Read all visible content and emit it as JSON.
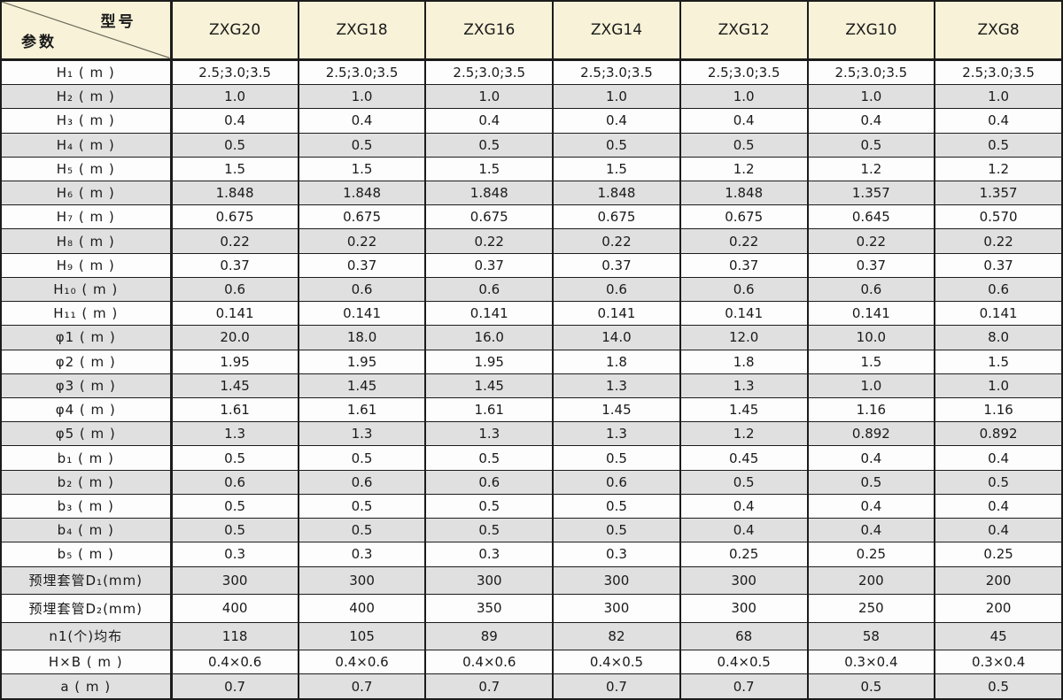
{
  "header": {
    "corner_top": "型号",
    "corner_bottom": "参数",
    "models": [
      "ZXG20",
      "ZXG18",
      "ZXG16",
      "ZXG14",
      "ZXG12",
      "ZXG10",
      "ZXG8"
    ]
  },
  "rows": [
    {
      "label": "H₁ ( m )",
      "values": [
        "2.5;3.0;3.5",
        "2.5;3.0;3.5",
        "2.5;3.0;3.5",
        "2.5;3.0;3.5",
        "2.5;3.0;3.5",
        "2.5;3.0;3.5",
        "2.5;3.0;3.5"
      ]
    },
    {
      "label": "H₂ ( m )",
      "values": [
        "1.0",
        "1.0",
        "1.0",
        "1.0",
        "1.0",
        "1.0",
        "1.0"
      ]
    },
    {
      "label": "H₃ ( m )",
      "values": [
        "0.4",
        "0.4",
        "0.4",
        "0.4",
        "0.4",
        "0.4",
        "0.4"
      ]
    },
    {
      "label": "H₄ ( m )",
      "values": [
        "0.5",
        "0.5",
        "0.5",
        "0.5",
        "0.5",
        "0.5",
        "0.5"
      ]
    },
    {
      "label": "H₅ ( m )",
      "values": [
        "1.5",
        "1.5",
        "1.5",
        "1.5",
        "1.2",
        "1.2",
        "1.2"
      ]
    },
    {
      "label": "H₆ ( m )",
      "values": [
        "1.848",
        "1.848",
        "1.848",
        "1.848",
        "1.848",
        "1.357",
        "1.357"
      ]
    },
    {
      "label": "H₇ ( m )",
      "values": [
        "0.675",
        "0.675",
        "0.675",
        "0.675",
        "0.675",
        "0.645",
        "0.570"
      ]
    },
    {
      "label": "H₈ ( m )",
      "values": [
        "0.22",
        "0.22",
        "0.22",
        "0.22",
        "0.22",
        "0.22",
        "0.22"
      ]
    },
    {
      "label": "H₉ ( m )",
      "values": [
        "0.37",
        "0.37",
        "0.37",
        "0.37",
        "0.37",
        "0.37",
        "0.37"
      ]
    },
    {
      "label": "H₁₀ ( m )",
      "values": [
        "0.6",
        "0.6",
        "0.6",
        "0.6",
        "0.6",
        "0.6",
        "0.6"
      ]
    },
    {
      "label": "H₁₁ ( m )",
      "values": [
        "0.141",
        "0.141",
        "0.141",
        "0.141",
        "0.141",
        "0.141",
        "0.141"
      ]
    },
    {
      "label": "φ1 ( m )",
      "values": [
        "20.0",
        "18.0",
        "16.0",
        "14.0",
        "12.0",
        "10.0",
        "8.0"
      ]
    },
    {
      "label": "φ2 ( m )",
      "values": [
        "1.95",
        "1.95",
        "1.95",
        "1.8",
        "1.8",
        "1.5",
        "1.5"
      ]
    },
    {
      "label": "φ3 ( m )",
      "values": [
        "1.45",
        "1.45",
        "1.45",
        "1.3",
        "1.3",
        "1.0",
        "1.0"
      ]
    },
    {
      "label": "φ4 ( m )",
      "values": [
        "1.61",
        "1.61",
        "1.61",
        "1.45",
        "1.45",
        "1.16",
        "1.16"
      ]
    },
    {
      "label": "φ5 ( m )",
      "values": [
        "1.3",
        "1.3",
        "1.3",
        "1.3",
        "1.2",
        "0.892",
        "0.892"
      ]
    },
    {
      "label": "b₁ ( m )",
      "values": [
        "0.5",
        "0.5",
        "0.5",
        "0.5",
        "0.45",
        "0.4",
        "0.4"
      ]
    },
    {
      "label": "b₂ ( m )",
      "values": [
        "0.6",
        "0.6",
        "0.6",
        "0.6",
        "0.5",
        "0.5",
        "0.5"
      ]
    },
    {
      "label": "b₃ ( m )",
      "values": [
        "0.5",
        "0.5",
        "0.5",
        "0.5",
        "0.4",
        "0.4",
        "0.4"
      ]
    },
    {
      "label": "b₄ ( m )",
      "values": [
        "0.5",
        "0.5",
        "0.5",
        "0.5",
        "0.4",
        "0.4",
        "0.4"
      ]
    },
    {
      "label": "b₅ ( m )",
      "values": [
        "0.3",
        "0.3",
        "0.3",
        "0.3",
        "0.25",
        "0.25",
        "0.25"
      ]
    },
    {
      "label": "预埋套管D₁(mm)",
      "values": [
        "300",
        "300",
        "300",
        "300",
        "300",
        "200",
        "200"
      ]
    },
    {
      "label": "预埋套管D₂(mm)",
      "values": [
        "400",
        "400",
        "350",
        "300",
        "300",
        "250",
        "200"
      ]
    },
    {
      "label": "n1(个)均布",
      "values": [
        "118",
        "105",
        "89",
        "82",
        "68",
        "58",
        "45"
      ]
    },
    {
      "label": "H×B ( m )",
      "values": [
        "0.4×0.6",
        "0.4×0.6",
        "0.4×0.6",
        "0.4×0.5",
        "0.4×0.5",
        "0.3×0.4",
        "0.3×0.4"
      ]
    },
    {
      "label": "a ( m )",
      "values": [
        "0.7",
        "0.7",
        "0.7",
        "0.7",
        "0.7",
        "0.5",
        "0.5"
      ]
    }
  ],
  "colors": {
    "header_bg": "#f7f2d8",
    "alt_row_bg": "#e0e0e0",
    "border": "#1c1c1c",
    "text": "#1a1a1a"
  }
}
